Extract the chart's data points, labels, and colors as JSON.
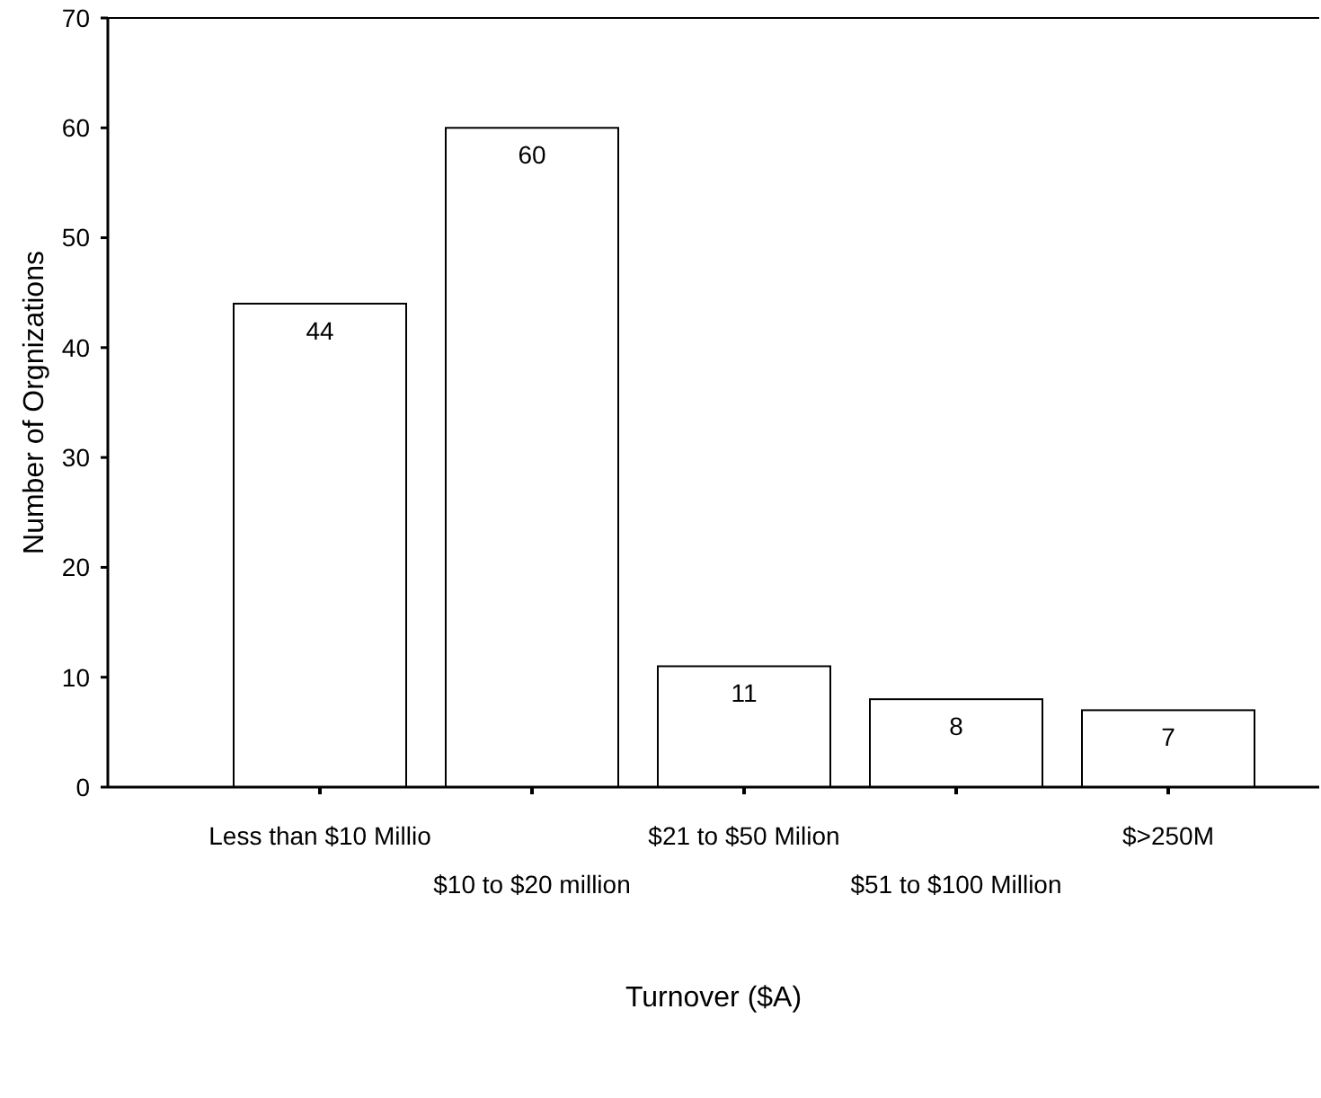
{
  "chart_data": {
    "type": "bar",
    "xlabel": "Turnover ($A)",
    "ylabel": "Number of Orgnizations",
    "categories": [
      "Less than $10 Millio",
      "$10 to $20 million",
      "$21 to $50 Milion",
      "$51 to $100 Million",
      "$>250M"
    ],
    "values": [
      44,
      60,
      11,
      8,
      7
    ],
    "color": "#ffffff",
    "ylim": [
      0,
      70
    ],
    "yticks": [
      0,
      10,
      20,
      30,
      40,
      50,
      60,
      70
    ],
    "grid": false,
    "data_labels": true
  }
}
